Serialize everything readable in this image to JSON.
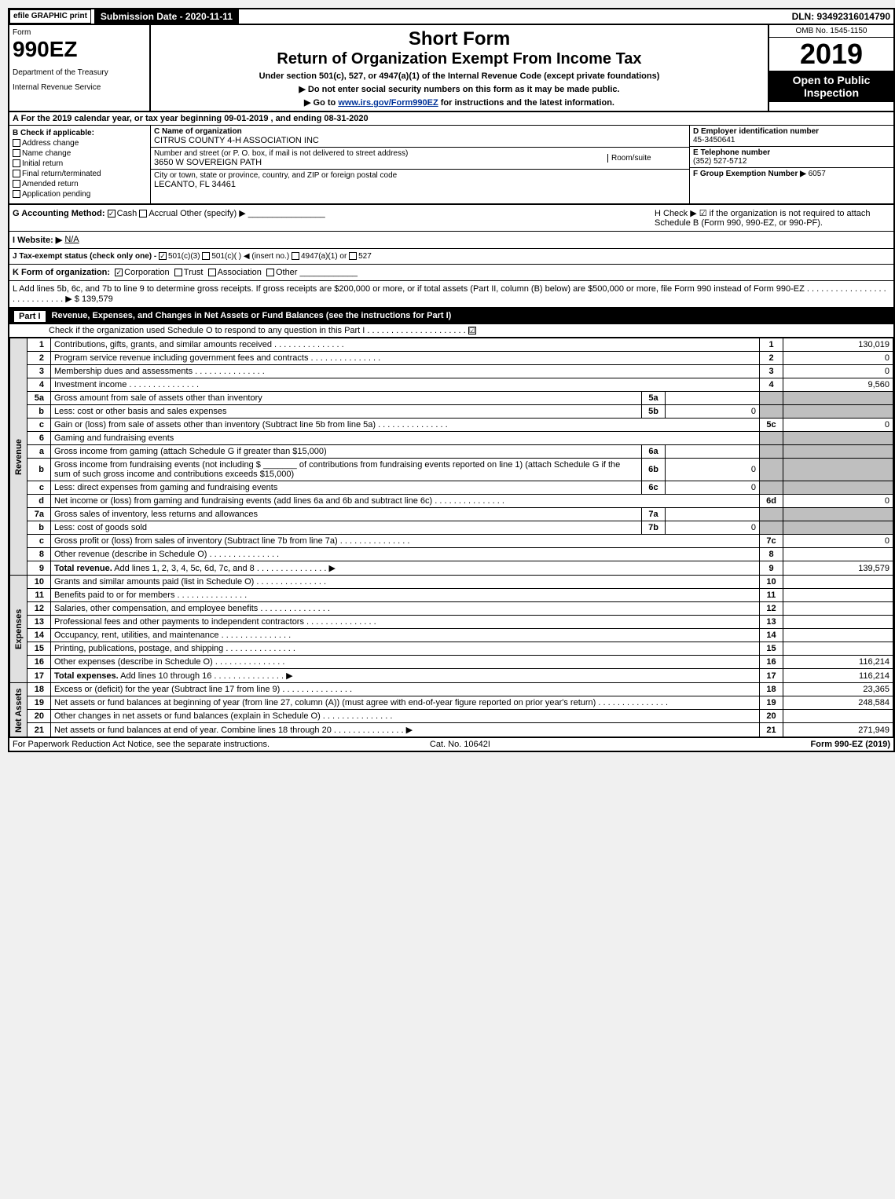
{
  "topbar": {
    "efile": "efile GRAPHIC print",
    "subdate": "Submission Date - 2020-11-11",
    "dln": "DLN: 93492316014790"
  },
  "header": {
    "form_word": "Form",
    "form_num": "990EZ",
    "dept": "Department of the Treasury",
    "irs": "Internal Revenue Service",
    "title1": "Short Form",
    "title2": "Return of Organization Exempt From Income Tax",
    "subtitle": "Under section 501(c), 527, or 4947(a)(1) of the Internal Revenue Code (except private foundations)",
    "warn": "▶ Do not enter social security numbers on this form as it may be made public.",
    "goto_pre": "▶ Go to ",
    "goto_link": "www.irs.gov/Form990EZ",
    "goto_post": " for instructions and the latest information.",
    "omb": "OMB No. 1545-1150",
    "year": "2019",
    "open": "Open to Public Inspection"
  },
  "taxyear": "A  For the 2019 calendar year, or tax year beginning 09-01-2019 , and ending 08-31-2020",
  "colB": {
    "label": "B  Check if applicable:",
    "items": [
      "Address change",
      "Name change",
      "Initial return",
      "Final return/terminated",
      "Amended return",
      "Application pending"
    ]
  },
  "colC": {
    "name_label": "C Name of organization",
    "name": "CITRUS COUNTY 4-H ASSOCIATION INC",
    "addr_label": "Number and street (or P. O. box, if mail is not delivered to street address)",
    "room_label": "Room/suite",
    "addr": "3650 W SOVEREIGN PATH",
    "city_label": "City or town, state or province, country, and ZIP or foreign postal code",
    "city": "LECANTO, FL  34461"
  },
  "colD": {
    "ein_label": "D Employer identification number",
    "ein": "45-3450641",
    "tel_label": "E Telephone number",
    "tel": "(352) 527-5712",
    "grp_label": "F Group Exemption Number ▶",
    "grp": "6057"
  },
  "rowG": {
    "label": "G Accounting Method:",
    "cash": "Cash",
    "accrual": "Accrual",
    "other": "Other (specify) ▶"
  },
  "rowH": {
    "text": "H  Check ▶ ☑ if the organization is not required to attach Schedule B (Form 990, 990-EZ, or 990-PF)."
  },
  "rowI": {
    "label": "I Website: ▶",
    "val": "N/A"
  },
  "rowJ": {
    "label": "J Tax-exempt status (check only one) -",
    "o1": "501(c)(3)",
    "o2": "501(c)(  ) ◀ (insert no.)",
    "o3": "4947(a)(1) or",
    "o4": "527"
  },
  "rowK": {
    "label": "K Form of organization:",
    "o1": "Corporation",
    "o2": "Trust",
    "o3": "Association",
    "o4": "Other"
  },
  "rowL": {
    "text": "L Add lines 5b, 6c, and 7b to line 9 to determine gross receipts. If gross receipts are $200,000 or more, or if total assets (Part II, column (B) below) are $500,000 or more, file Form 990 instead of Form 990-EZ",
    "amt": "$ 139,579"
  },
  "part1": {
    "label": "Part I",
    "title": "Revenue, Expenses, and Changes in Net Assets or Fund Balances (see the instructions for Part I)",
    "sub": "Check if the organization used Schedule O to respond to any question in this Part I",
    "checked": "☑"
  },
  "side": {
    "rev": "Revenue",
    "exp": "Expenses",
    "net": "Net Assets"
  },
  "rev": [
    {
      "n": "1",
      "d": "Contributions, gifts, grants, and similar amounts received",
      "ln": "1",
      "v": "130,019"
    },
    {
      "n": "2",
      "d": "Program service revenue including government fees and contracts",
      "ln": "2",
      "v": "0"
    },
    {
      "n": "3",
      "d": "Membership dues and assessments",
      "ln": "3",
      "v": "0"
    },
    {
      "n": "4",
      "d": "Investment income",
      "ln": "4",
      "v": "9,560"
    },
    {
      "n": "5a",
      "d": "Gross amount from sale of assets other than inventory",
      "sn": "5a",
      "sv": ""
    },
    {
      "n": "b",
      "d": "Less: cost or other basis and sales expenses",
      "sn": "5b",
      "sv": "0"
    },
    {
      "n": "c",
      "d": "Gain or (loss) from sale of assets other than inventory (Subtract line 5b from line 5a)",
      "ln": "5c",
      "v": "0"
    },
    {
      "n": "6",
      "d": "Gaming and fundraising events",
      "gray": true
    },
    {
      "n": "a",
      "d": "Gross income from gaming (attach Schedule G if greater than $15,000)",
      "sn": "6a",
      "sv": ""
    },
    {
      "n": "b",
      "d": "Gross income from fundraising events (not including $ _______ of contributions from fundraising events reported on line 1) (attach Schedule G if the sum of such gross income and contributions exceeds $15,000)",
      "sn": "6b",
      "sv": "0"
    },
    {
      "n": "c",
      "d": "Less: direct expenses from gaming and fundraising events",
      "sn": "6c",
      "sv": "0"
    },
    {
      "n": "d",
      "d": "Net income or (loss) from gaming and fundraising events (add lines 6a and 6b and subtract line 6c)",
      "ln": "6d",
      "v": "0"
    },
    {
      "n": "7a",
      "d": "Gross sales of inventory, less returns and allowances",
      "sn": "7a",
      "sv": ""
    },
    {
      "n": "b",
      "d": "Less: cost of goods sold",
      "sn": "7b",
      "sv": "0"
    },
    {
      "n": "c",
      "d": "Gross profit or (loss) from sales of inventory (Subtract line 7b from line 7a)",
      "ln": "7c",
      "v": "0"
    },
    {
      "n": "8",
      "d": "Other revenue (describe in Schedule O)",
      "ln": "8",
      "v": ""
    },
    {
      "n": "9",
      "d": "Total revenue. Add lines 1, 2, 3, 4, 5c, 6d, 7c, and 8",
      "ln": "9",
      "v": "139,579",
      "bold": true,
      "arrow": true
    }
  ],
  "exp": [
    {
      "n": "10",
      "d": "Grants and similar amounts paid (list in Schedule O)",
      "ln": "10",
      "v": ""
    },
    {
      "n": "11",
      "d": "Benefits paid to or for members",
      "ln": "11",
      "v": ""
    },
    {
      "n": "12",
      "d": "Salaries, other compensation, and employee benefits",
      "ln": "12",
      "v": ""
    },
    {
      "n": "13",
      "d": "Professional fees and other payments to independent contractors",
      "ln": "13",
      "v": ""
    },
    {
      "n": "14",
      "d": "Occupancy, rent, utilities, and maintenance",
      "ln": "14",
      "v": ""
    },
    {
      "n": "15",
      "d": "Printing, publications, postage, and shipping",
      "ln": "15",
      "v": ""
    },
    {
      "n": "16",
      "d": "Other expenses (describe in Schedule O)",
      "ln": "16",
      "v": "116,214"
    },
    {
      "n": "17",
      "d": "Total expenses. Add lines 10 through 16",
      "ln": "17",
      "v": "116,214",
      "bold": true,
      "arrow": true
    }
  ],
  "net": [
    {
      "n": "18",
      "d": "Excess or (deficit) for the year (Subtract line 17 from line 9)",
      "ln": "18",
      "v": "23,365"
    },
    {
      "n": "19",
      "d": "Net assets or fund balances at beginning of year (from line 27, column (A)) (must agree with end-of-year figure reported on prior year's return)",
      "ln": "19",
      "v": "248,584"
    },
    {
      "n": "20",
      "d": "Other changes in net assets or fund balances (explain in Schedule O)",
      "ln": "20",
      "v": ""
    },
    {
      "n": "21",
      "d": "Net assets or fund balances at end of year. Combine lines 18 through 20",
      "ln": "21",
      "v": "271,949",
      "arrow": true
    }
  ],
  "footer": {
    "left": "For Paperwork Reduction Act Notice, see the separate instructions.",
    "mid": "Cat. No. 10642I",
    "right": "Form 990-EZ (2019)"
  }
}
